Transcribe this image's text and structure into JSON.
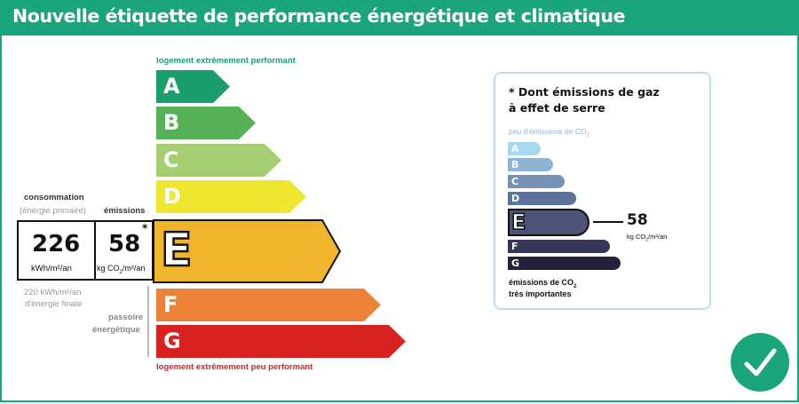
{
  "header": {
    "title": "Nouvelle étiquette de performance énergétique et climatique"
  },
  "dpe": {
    "top_label": "logement extrêmement performant",
    "bottom_label": "logement extrêmement peu performant",
    "classes": [
      {
        "letter": "A",
        "color": "#1a9e6c"
      },
      {
        "letter": "B",
        "color": "#55b156"
      },
      {
        "letter": "C",
        "color": "#a7cd71"
      },
      {
        "letter": "D",
        "color": "#efe62e"
      },
      {
        "letter": "E",
        "color": "#f0b52a"
      },
      {
        "letter": "F",
        "color": "#ec8237"
      },
      {
        "letter": "G",
        "color": "#d7221f"
      }
    ],
    "active_class": "E",
    "consumption_title": "consommation",
    "consumption_sub": "(énergie primaire)",
    "emissions_title": "émissions",
    "consumption_value": "226",
    "consumption_unit": "kWh/m²/an",
    "emissions_value": "58",
    "emissions_unit_a": "kg CO",
    "emissions_unit_sub": "2",
    "emissions_unit_b": "/m²/an",
    "asterisk": "*",
    "final_energy_line1": "220 kWh/m²/an",
    "final_energy_line2": "d'énergie finale",
    "passoire_line1": "passoire",
    "passoire_line2": "énergétique"
  },
  "ges": {
    "title_line1": "* Dont émissions de gaz",
    "title_line2": "à effet de serre",
    "top_label_a": "peu d'émissions de CO",
    "top_label_sub": "2",
    "bottom_label_line1_a": "émissions de CO",
    "bottom_label_line1_sub": "2",
    "bottom_label_line2": "très importantes",
    "classes": [
      {
        "letter": "A",
        "color": "#a8d8f0"
      },
      {
        "letter": "B",
        "color": "#8eb4d3"
      },
      {
        "letter": "C",
        "color": "#7592b4"
      },
      {
        "letter": "D",
        "color": "#5e7399"
      },
      {
        "letter": "E",
        "color": "#4b5377"
      },
      {
        "letter": "F",
        "color": "#383658"
      },
      {
        "letter": "G",
        "color": "#27203a"
      }
    ],
    "active_class": "E",
    "value": "58",
    "unit_a": "kg CO",
    "unit_sub": "2",
    "unit_b": "/m²/an"
  },
  "badge": {
    "icon": "checkmark-icon",
    "color": "#1aa57c"
  }
}
